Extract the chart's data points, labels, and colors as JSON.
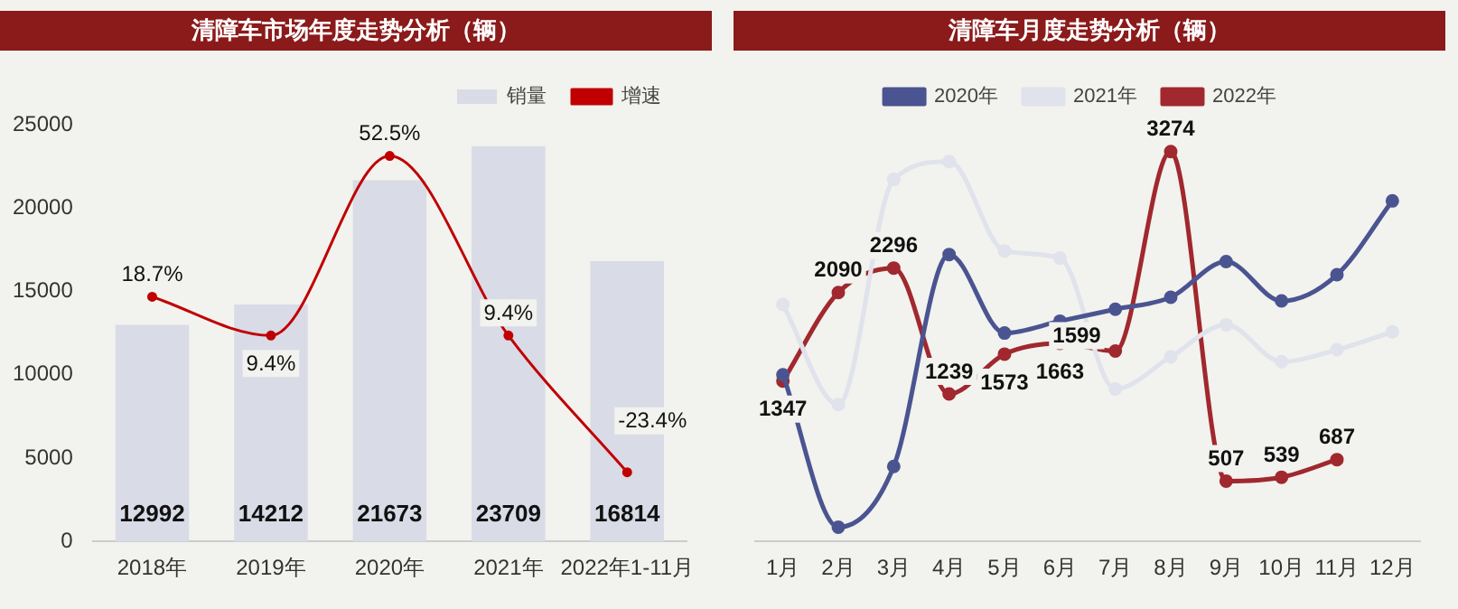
{
  "chart_data": [
    {
      "type": "bar",
      "title": "清障车市场年度走势分析（辆）",
      "categories": [
        "2018年",
        "2019年",
        "2020年",
        "2021年",
        "2022年1-11月"
      ],
      "series": [
        {
          "name": "销量",
          "type": "bar",
          "color": "#d9dbe6",
          "values": [
            12992,
            14212,
            21673,
            23709,
            16814
          ],
          "value_labels": [
            "12992",
            "14212",
            "21673",
            "23709",
            "16814"
          ]
        },
        {
          "name": "增速",
          "type": "line",
          "axis": "y2",
          "color": "#c00000",
          "values": [
            18.7,
            9.4,
            52.5,
            9.4,
            -23.4
          ],
          "value_labels": [
            "18.7%",
            "9.4%",
            "52.5%",
            "9.4%",
            "-23.4%"
          ]
        }
      ],
      "ylim": [
        0,
        25000
      ],
      "yticks": [
        0,
        5000,
        10000,
        15000,
        20000,
        25000
      ],
      "tick_labels": "xy",
      "legend": "top right",
      "grid": false,
      "marker": "circle"
    },
    {
      "type": "line",
      "title": "清障车月度走势分析（辆）",
      "categories": [
        "1月",
        "2月",
        "3月",
        "4月",
        "5月",
        "6月",
        "7月",
        "8月",
        "9月",
        "10月",
        "11月",
        "12月"
      ],
      "series": [
        {
          "name": "2020年",
          "color": "#4a5490",
          "values": [
            1400,
            120,
            630,
            2410,
            1750,
            1850,
            1950,
            2050,
            2350,
            2020,
            2240,
            2860
          ]
        },
        {
          "name": "2021年",
          "color": "#e0e2ec",
          "values": [
            1990,
            1150,
            3040,
            3190,
            2440,
            2380,
            1280,
            1550,
            1820,
            1510,
            1610,
            1760
          ]
        },
        {
          "name": "2022年",
          "color": "#a0282e",
          "values": [
            1347,
            2090,
            2296,
            1239,
            1573,
            1663,
            1599,
            3274,
            507,
            539,
            687,
            null
          ],
          "value_labels": [
            "1347",
            "2090",
            "2296",
            "1239",
            "1573",
            "1663",
            "1599",
            "3274",
            "507",
            "539",
            "687",
            null
          ]
        }
      ],
      "tick_labels": "x",
      "legend": "top",
      "grid": false,
      "marker": "circle"
    }
  ]
}
